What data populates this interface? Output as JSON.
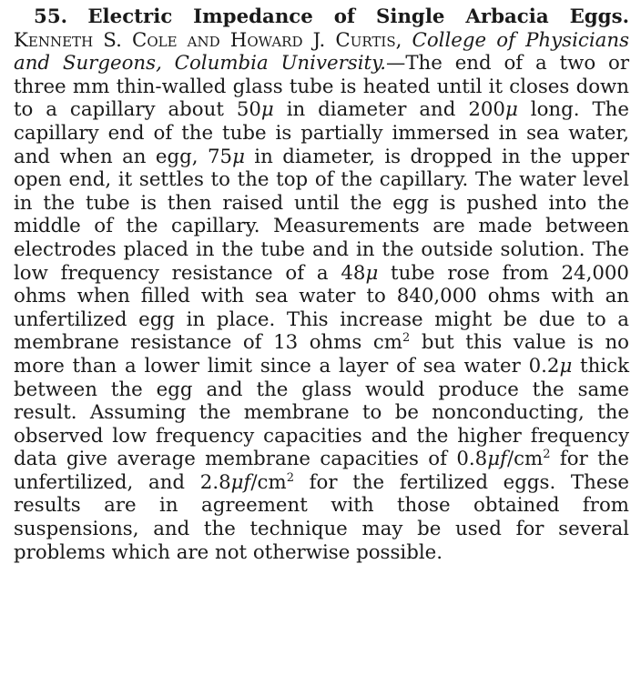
{
  "abstract": {
    "number": "55.",
    "title": "Electric Impedance of Single Arbacia Eggs.",
    "authors": "Kenneth S. Cole and Howard J. Curtis,",
    "affiliation": "College of Physicians and Surgeons, Columbia University.",
    "dash": "—",
    "s1": "The end of a two or three mm thin-walled glass tube is heated until it closes down to a capillary about 50",
    "mu": "μ",
    "s2": " in diameter and 200",
    "s3": " long. The capillary end of the tube is partially immersed in sea water, and when an egg, 75",
    "s4": " in diameter, is dropped in the upper open end, it settles to the top of the capillary. The water level in the tube is then raised until the egg is pushed into the middle of the capillary. Measurements are made between electrodes placed in the tube and in the outside solution. The low frequency resistance of a 48",
    "s5": " tube rose from 24,000 ohms when filled with sea water to 840,000 ohms with an unfertilized egg in place. This increase might be due to a membrane resistance of 13 ohms cm",
    "sup2": "2",
    "s6": " but this value is no more than a lower limit since a layer of sea water 0.2",
    "s7": " thick between the egg and the glass would produce the same result. Assuming the membrane to be nonconducting, the observed low frequency capacities and the higher frequency data give average membrane capacities of 0.8",
    "mu_f": "μf",
    "s8": "/cm",
    "s9": " for the unfertilized, and 2.8",
    "s10": "/cm",
    "s11": " for the fertilized eggs. These results are in agreement with those obtained from suspensions, and the technique may be used for several problems which are not otherwise possible."
  }
}
